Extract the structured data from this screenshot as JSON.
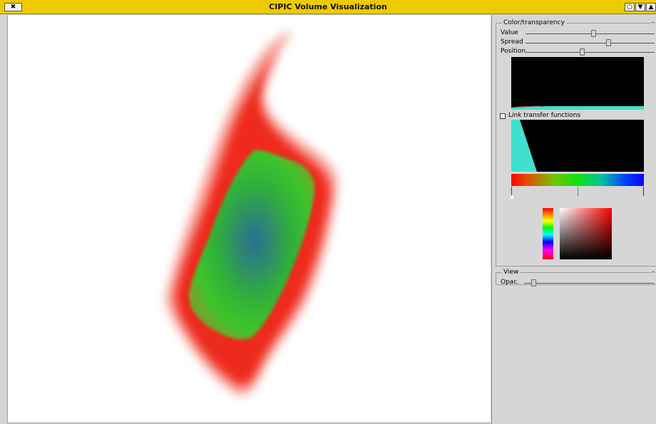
{
  "window": {
    "title": "CIPIC Volume Visualization",
    "close_glyph": "✖",
    "button1_glyph": "○",
    "button2_glyph": "▼",
    "button3_glyph": "▲"
  },
  "panel": {
    "color_group": {
      "label": "Color/transparency",
      "collapse_glyph": "–",
      "sliders": [
        {
          "label": "Value",
          "level": 0.45
        },
        {
          "label": "Spread",
          "level": 0.63
        },
        {
          "label": "Position",
          "level": 0.4
        }
      ],
      "link_checkbox": {
        "label": "Link transfer functions",
        "checked": false
      }
    },
    "view_group": {
      "label": "View",
      "collapse_glyph": "–",
      "opacity_label": "Opac.",
      "opacity_level": 0.05
    }
  },
  "colors": {
    "titlebar": "#f3d200",
    "transfer_fill": "#40e0d0",
    "volume_outer": "#ee2a1c",
    "volume_mid": "#28c027",
    "volume_core": "#2a6f8f"
  }
}
